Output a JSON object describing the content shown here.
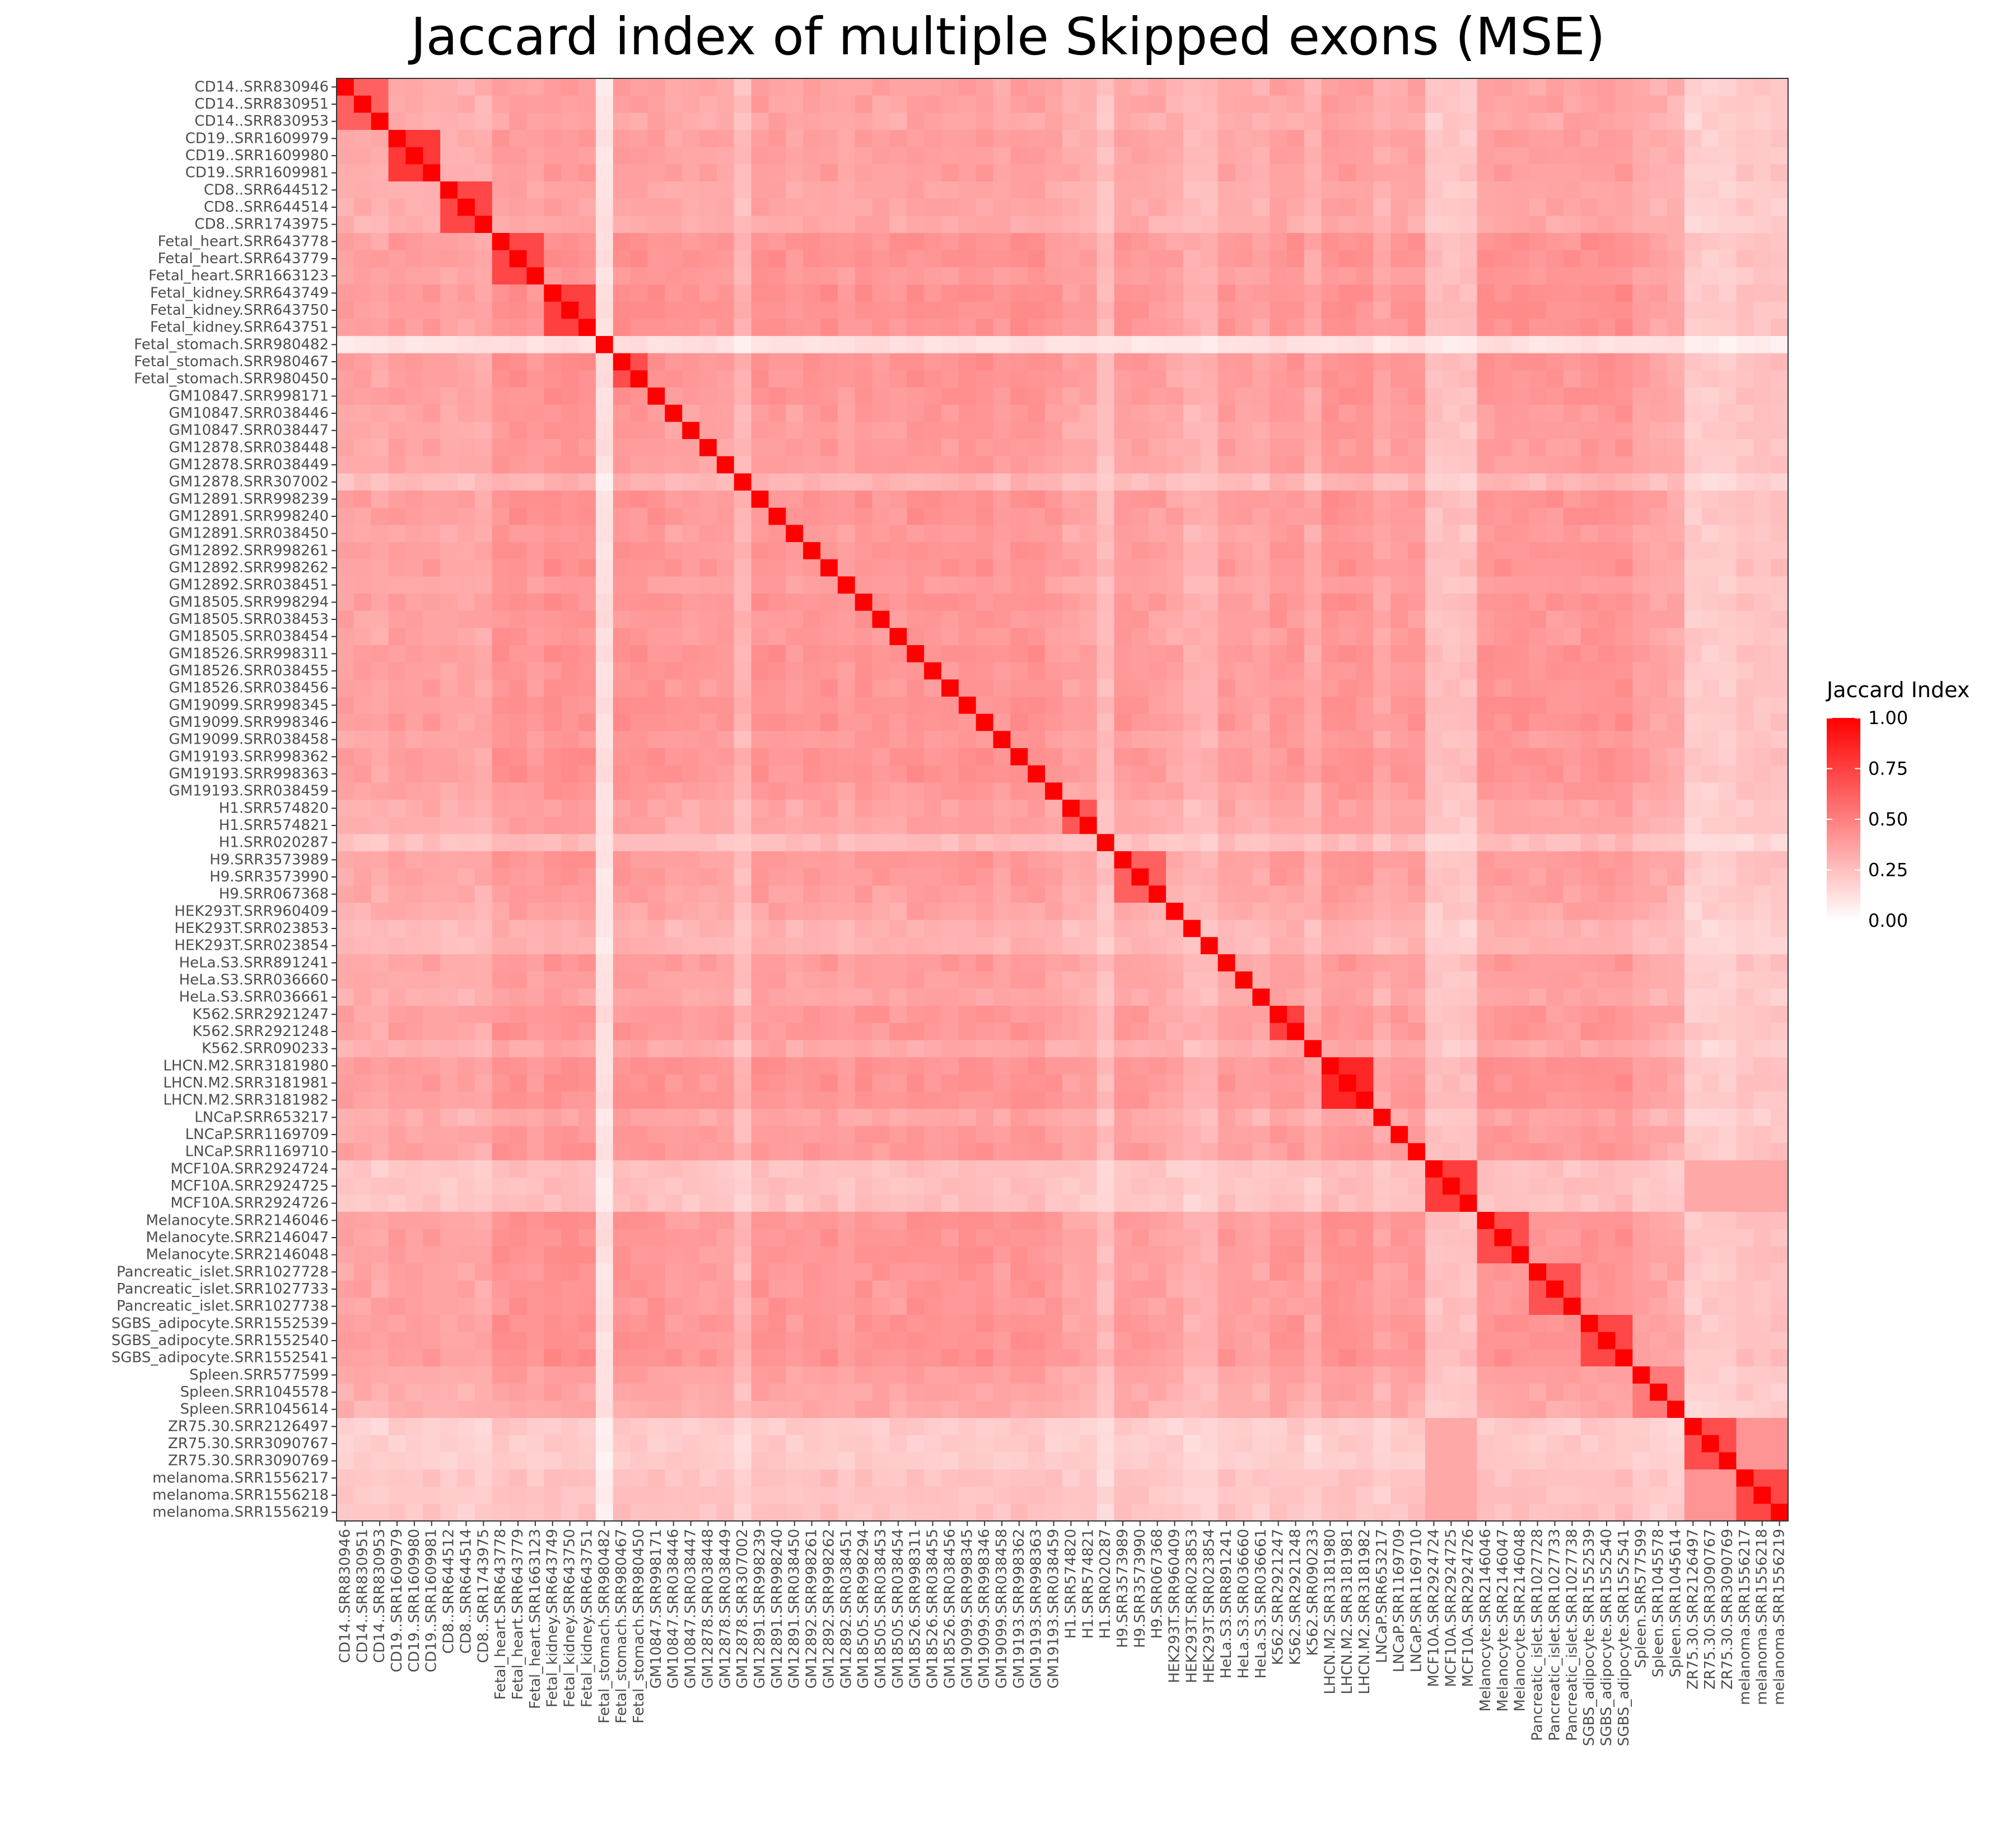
{
  "chart_data": {
    "type": "heatmap",
    "title": "Jaccard index of multiple Skipped exons (MSE)",
    "samples": [
      "CD14..SRR830946",
      "CD14..SRR830951",
      "CD14..SRR830953",
      "CD19..SRR1609979",
      "CD19..SRR1609980",
      "CD19..SRR1609981",
      "CD8..SRR644512",
      "CD8..SRR644514",
      "CD8..SRR1743975",
      "Fetal_heart.SRR643778",
      "Fetal_heart.SRR643779",
      "Fetal_heart.SRR1663123",
      "Fetal_kidney.SRR643749",
      "Fetal_kidney.SRR643750",
      "Fetal_kidney.SRR643751",
      "Fetal_stomach.SRR980482",
      "Fetal_stomach.SRR980467",
      "Fetal_stomach.SRR980450",
      "GM10847.SRR998171",
      "GM10847.SRR038446",
      "GM10847.SRR038447",
      "GM12878.SRR038448",
      "GM12878.SRR038449",
      "GM12878.SRR307002",
      "GM12891.SRR998239",
      "GM12891.SRR998240",
      "GM12891.SRR038450",
      "GM12892.SRR998261",
      "GM12892.SRR998262",
      "GM12892.SRR038451",
      "GM18505.SRR998294",
      "GM18505.SRR038453",
      "GM18505.SRR038454",
      "GM18526.SRR998311",
      "GM18526.SRR038455",
      "GM18526.SRR038456",
      "GM19099.SRR998345",
      "GM19099.SRR998346",
      "GM19099.SRR038458",
      "GM19193.SRR998362",
      "GM19193.SRR998363",
      "GM19193.SRR038459",
      "H1.SRR574820",
      "H1.SRR574821",
      "H1.SRR020287",
      "H9.SRR3573989",
      "H9.SRR3573990",
      "H9.SRR067368",
      "HEK293T.SRR960409",
      "HEK293T.SRR023853",
      "HEK293T.SRR023854",
      "HeLa.S3.SRR891241",
      "HeLa.S3.SRR036660",
      "HeLa.S3.SRR036661",
      "K562.SRR2921247",
      "K562.SRR2921248",
      "K562.SRR090233",
      "LHCN.M2.SRR3181980",
      "LHCN.M2.SRR3181981",
      "LHCN.M2.SRR3181982",
      "LNCaP.SRR653217",
      "LNCaP.SRR1169709",
      "LNCaP.SRR1169710",
      "MCF10A.SRR2924724",
      "MCF10A.SRR2924725",
      "MCF10A.SRR2924726",
      "Melanocyte.SRR2146046",
      "Melanocyte.SRR2146047",
      "Melanocyte.SRR2146048",
      "Pancreatic_islet.SRR1027728",
      "Pancreatic_islet.SRR1027733",
      "Pancreatic_islet.SRR1027738",
      "SGBS_adipocyte.SRR1552539",
      "SGBS_adipocyte.SRR1552540",
      "SGBS_adipocyte.SRR1552541",
      "Spleen.SRR577599",
      "Spleen.SRR1045578",
      "Spleen.SRR1045614",
      "ZR75.30.SRR2126497",
      "ZR75.30.SRR3090767",
      "ZR75.30.SRR3090769",
      "melanoma.SRR1556217",
      "melanoma.SRR1556218",
      "melanoma.SRR1556219"
    ],
    "row_profile": [
      0.34,
      0.34,
      0.31,
      0.37,
      0.36,
      0.36,
      0.32,
      0.32,
      0.3,
      0.46,
      0.47,
      0.41,
      0.48,
      0.48,
      0.46,
      0.04,
      0.46,
      0.45,
      0.44,
      0.4,
      0.39,
      0.39,
      0.38,
      0.22,
      0.45,
      0.44,
      0.39,
      0.44,
      0.44,
      0.38,
      0.45,
      0.42,
      0.41,
      0.46,
      0.44,
      0.43,
      0.46,
      0.46,
      0.4,
      0.46,
      0.46,
      0.4,
      0.33,
      0.33,
      0.18,
      0.4,
      0.39,
      0.36,
      0.32,
      0.24,
      0.24,
      0.39,
      0.36,
      0.32,
      0.42,
      0.42,
      0.3,
      0.46,
      0.46,
      0.45,
      0.32,
      0.4,
      0.42,
      0.16,
      0.16,
      0.16,
      0.44,
      0.44,
      0.44,
      0.42,
      0.42,
      0.42,
      0.45,
      0.46,
      0.46,
      0.36,
      0.32,
      0.3,
      0.11,
      0.11,
      0.11,
      0.15,
      0.15,
      0.15
    ],
    "tissue_blocks": [
      {
        "start": 0,
        "end": 2,
        "value": 0.62
      },
      {
        "start": 3,
        "end": 5,
        "value": 0.78
      },
      {
        "start": 6,
        "end": 8,
        "value": 0.72
      },
      {
        "start": 9,
        "end": 11,
        "value": 0.72
      },
      {
        "start": 12,
        "end": 14,
        "value": 0.75
      },
      {
        "start": 16,
        "end": 17,
        "value": 0.7
      },
      {
        "start": 42,
        "end": 43,
        "value": 0.66
      },
      {
        "start": 45,
        "end": 47,
        "value": 0.62
      },
      {
        "start": 54,
        "end": 55,
        "value": 0.75
      },
      {
        "start": 57,
        "end": 59,
        "value": 0.85
      },
      {
        "start": 63,
        "end": 65,
        "value": 0.76
      },
      {
        "start": 66,
        "end": 68,
        "value": 0.7
      },
      {
        "start": 69,
        "end": 71,
        "value": 0.68
      },
      {
        "start": 72,
        "end": 74,
        "value": 0.72
      },
      {
        "start": 75,
        "end": 77,
        "value": 0.52
      },
      {
        "start": 78,
        "end": 80,
        "value": 0.7
      },
      {
        "start": 81,
        "end": 83,
        "value": 0.72
      }
    ],
    "related_groups": [
      {
        "rows": [
          78,
          79,
          80,
          81,
          82,
          83
        ],
        "value": 0.42
      },
      {
        "rows": [
          63,
          64,
          65,
          78,
          79,
          80,
          81,
          82,
          83
        ],
        "value": 0.34
      }
    ],
    "diagonal_value": 1.0,
    "color_scale": {
      "low": "#ffffff",
      "high": "#ff0000",
      "min": 0,
      "max": 1
    },
    "legend": {
      "title": "Jaccard Index",
      "position": "right",
      "ticks": [
        "1.00",
        "0.75",
        "0.50",
        "0.25",
        "0.00"
      ],
      "tick_values": [
        1.0,
        0.75,
        0.5,
        0.25,
        0.0
      ]
    }
  }
}
